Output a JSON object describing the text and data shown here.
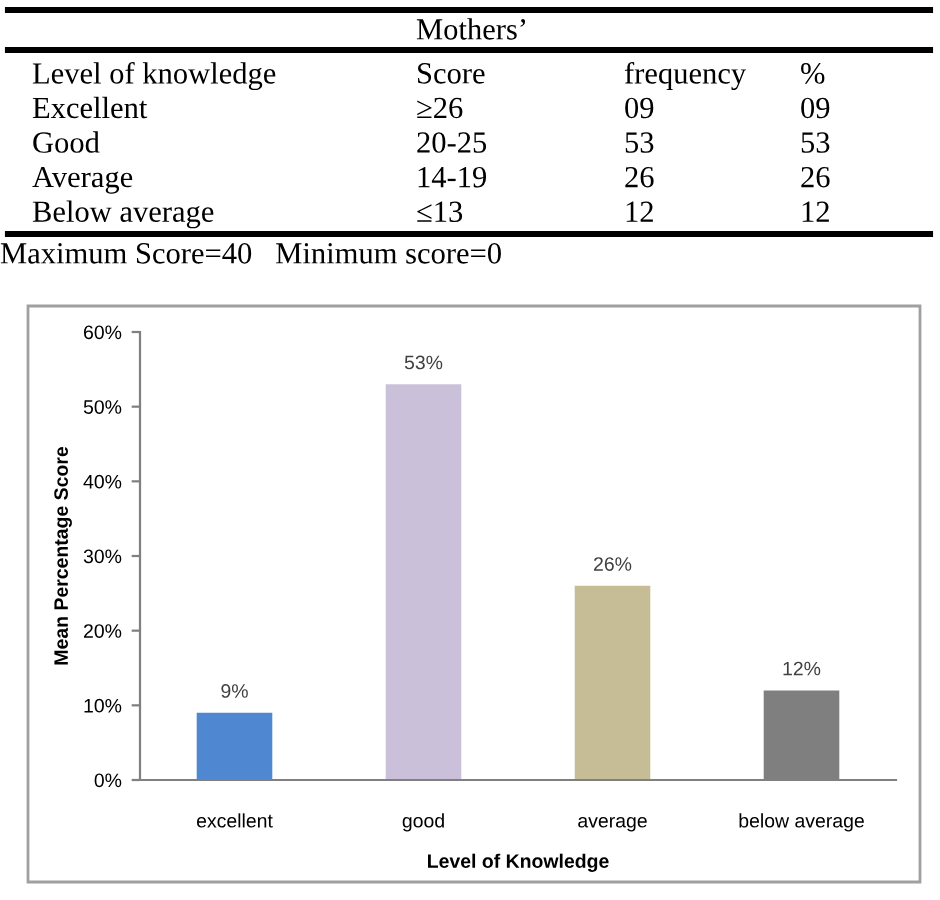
{
  "chart_data": {
    "type": "bar",
    "categories": [
      "excellent",
      "good",
      "average",
      "below average"
    ],
    "values": [
      9,
      53,
      26,
      12
    ],
    "colors": [
      "#4f87d1",
      "#cbc0da",
      "#c6bd97",
      "#7f7f7f"
    ],
    "value_labels": [
      "9%",
      "53%",
      "26%",
      "12%"
    ],
    "xlabel": "Level of Knowledge",
    "ylabel": "Mean Percentage Score",
    "ylim": [
      0,
      60
    ],
    "yticks": [
      {
        "value": 0,
        "label": "0%"
      },
      {
        "value": 10,
        "label": "10%"
      },
      {
        "value": 20,
        "label": "20%"
      },
      {
        "value": 30,
        "label": "30%"
      },
      {
        "value": 40,
        "label": "40%"
      },
      {
        "value": 50,
        "label": "50%"
      },
      {
        "value": 60,
        "label": "60%"
      }
    ],
    "grid": false,
    "annotations": [
      "Mothers’",
      "Level of knowledge",
      "Score",
      "frequency",
      "%",
      "Excellent",
      "≥26",
      "09",
      "09",
      "Good",
      "20-25",
      "53",
      "53",
      "Average",
      "14-19",
      "26",
      "26",
      "Below average",
      "≤13",
      "12",
      "12",
      "Maximum Score=40   Minimum score=0"
    ]
  }
}
